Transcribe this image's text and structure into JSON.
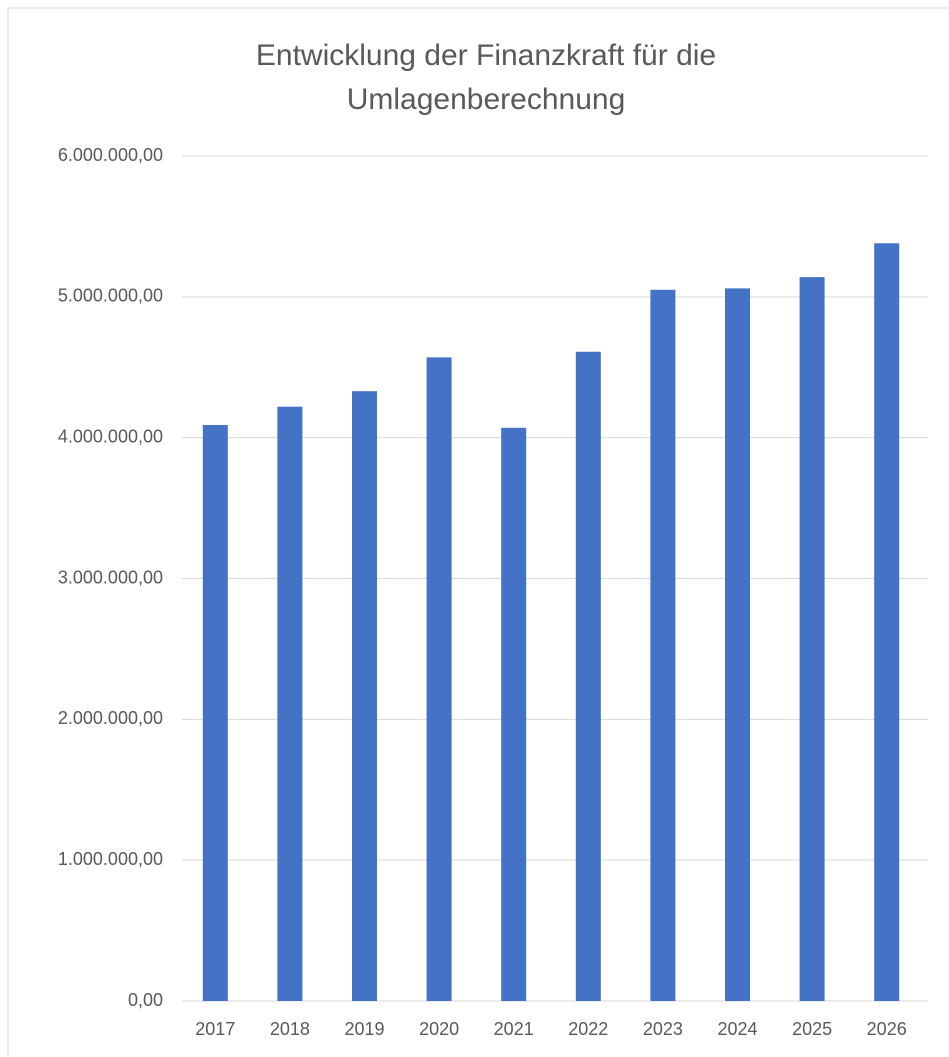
{
  "chart_data": {
    "type": "bar",
    "title": "Entwicklung der Finanzkraft für die Umlagenberechnung",
    "categories": [
      "2017",
      "2018",
      "2019",
      "2020",
      "2021",
      "2022",
      "2023",
      "2024",
      "2025",
      "2026"
    ],
    "values": [
      4090000,
      4220000,
      4330000,
      4570000,
      4070000,
      4610000,
      5050000,
      5060000,
      5140000,
      5380000
    ],
    "color": "#4472c4",
    "ylim": [
      0,
      6000000
    ],
    "yticks": [
      {
        "value": 0,
        "label": "0,00"
      },
      {
        "value": 1000000,
        "label": "1.000.000,00"
      },
      {
        "value": 2000000,
        "label": "2.000.000,00"
      },
      {
        "value": 3000000,
        "label": "3.000.000,00"
      },
      {
        "value": 4000000,
        "label": "4.000.000,00"
      },
      {
        "value": 5000000,
        "label": "5.000.000,00"
      },
      {
        "value": 6000000,
        "label": "6.000.000,00"
      }
    ],
    "grid": true
  }
}
